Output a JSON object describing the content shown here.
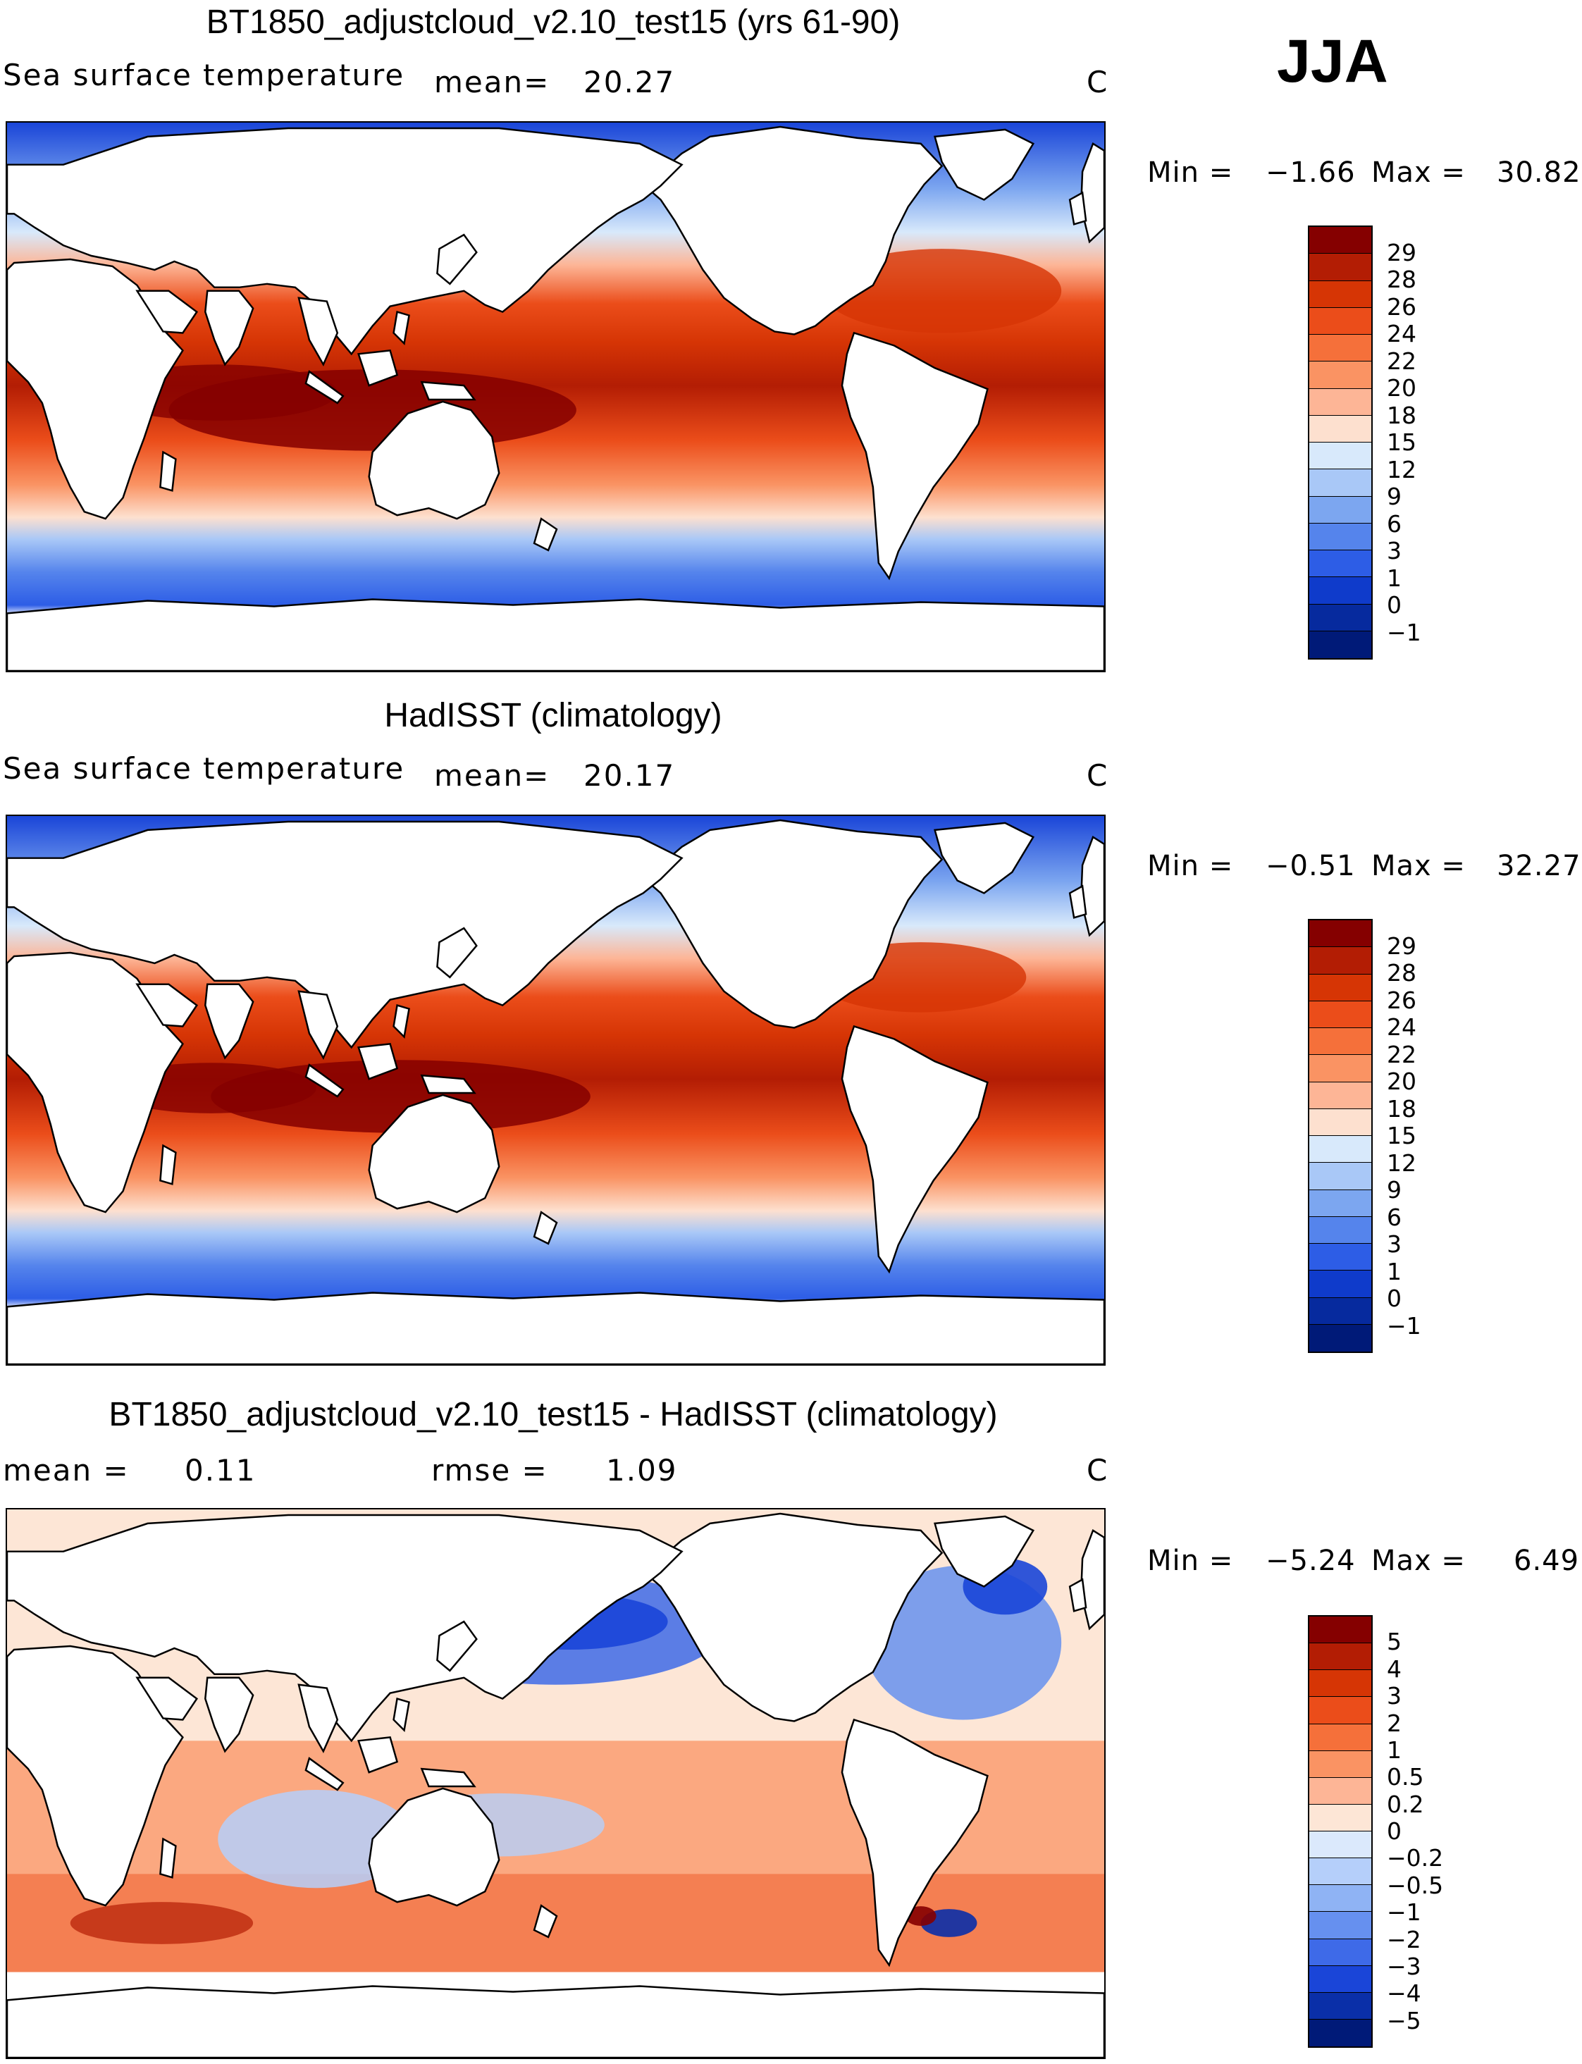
{
  "season": "JJA",
  "panels": [
    {
      "id": "model",
      "title": "BT1850_adjustcloud_v2.10_test15 (yrs 61-90)",
      "variable": "Sea surface temperature",
      "mean_label": "mean=",
      "mean_value": "20.27",
      "unit": "C",
      "min_label": "Min =",
      "min_value": "−1.66",
      "max_label": "Max =",
      "max_value": "30.82",
      "colorbar_labels": [
        "29",
        "28",
        "26",
        "24",
        "22",
        "20",
        "18",
        "15",
        "12",
        "9",
        "6",
        "3",
        "1",
        "0",
        "−1"
      ],
      "colorbar_colors": [
        "#850000",
        "#b31d04",
        "#d63505",
        "#eb4d1a",
        "#f5703a",
        "#fa9363",
        "#fdb596",
        "#fde0cf",
        "#d8e9fb",
        "#a9c8f7",
        "#7ca6f0",
        "#5584ec",
        "#2d5de6",
        "#0f3bcb",
        "#062a9e",
        "#001a78"
      ]
    },
    {
      "id": "obs",
      "title": "HadISST (climatology)",
      "variable": "Sea surface temperature",
      "mean_label": "mean=",
      "mean_value": "20.17",
      "unit": "C",
      "min_label": "Min =",
      "min_value": "−0.51",
      "max_label": "Max =",
      "max_value": "32.27",
      "colorbar_labels": [
        "29",
        "28",
        "26",
        "24",
        "22",
        "20",
        "18",
        "15",
        "12",
        "9",
        "6",
        "3",
        "1",
        "0",
        "−1"
      ],
      "colorbar_colors": [
        "#850000",
        "#b31d04",
        "#d63505",
        "#eb4d1a",
        "#f5703a",
        "#fa9363",
        "#fdb596",
        "#fde0cf",
        "#d8e9fb",
        "#a9c8f7",
        "#7ca6f0",
        "#5584ec",
        "#2d5de6",
        "#0f3bcb",
        "#062a9e",
        "#001a78"
      ]
    },
    {
      "id": "diff",
      "title": "BT1850_adjustcloud_v2.10_test15 - HadISST (climatology)",
      "mean_label": "mean =",
      "mean_value": "0.11",
      "rmse_label": "rmse =",
      "rmse_value": "1.09",
      "unit": "C",
      "min_label": "Min =",
      "min_value": "−5.24",
      "max_label": "Max =",
      "max_value": "6.49",
      "colorbar_labels": [
        "5",
        "4",
        "3",
        "2",
        "1",
        "0.5",
        "0.2",
        "0",
        "−0.2",
        "−0.5",
        "−1",
        "−2",
        "−3",
        "−4",
        "−5"
      ],
      "colorbar_colors": [
        "#850000",
        "#b31d04",
        "#d63505",
        "#eb4d1a",
        "#f5703a",
        "#fa9363",
        "#fdb596",
        "#fde6d6",
        "#dbe9fc",
        "#b5cffa",
        "#8fb3f4",
        "#6690ef",
        "#3e6ae8",
        "#1a45d8",
        "#0a2fa8",
        "#001a78"
      ]
    }
  ]
}
